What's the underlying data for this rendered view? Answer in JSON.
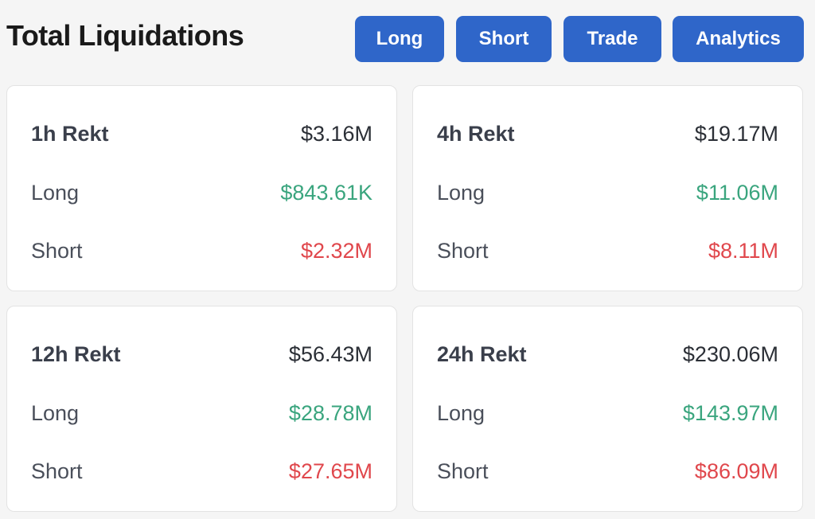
{
  "header": {
    "title": "Total Liquidations",
    "buttons": {
      "long": "Long",
      "short": "Short",
      "trade": "Trade",
      "analytics": "Analytics"
    }
  },
  "cards": [
    {
      "title": "1h Rekt",
      "total": "$3.16M",
      "long_label": "Long",
      "long": "$843.61K",
      "short_label": "Short",
      "short": "$2.32M"
    },
    {
      "title": "4h Rekt",
      "total": "$19.17M",
      "long_label": "Long",
      "long": "$11.06M",
      "short_label": "Short",
      "short": "$8.11M"
    },
    {
      "title": "12h Rekt",
      "total": "$56.43M",
      "long_label": "Long",
      "long": "$28.78M",
      "short_label": "Short",
      "short": "$27.65M"
    },
    {
      "title": "24h Rekt",
      "total": "$230.06M",
      "long_label": "Long",
      "long": "$143.97M",
      "short_label": "Short",
      "short": "$86.09M"
    }
  ],
  "colors": {
    "accent": "#2f66c9",
    "long": "#3aa57e",
    "short": "#e0474c",
    "background": "#f5f5f5",
    "card": "#ffffff"
  }
}
